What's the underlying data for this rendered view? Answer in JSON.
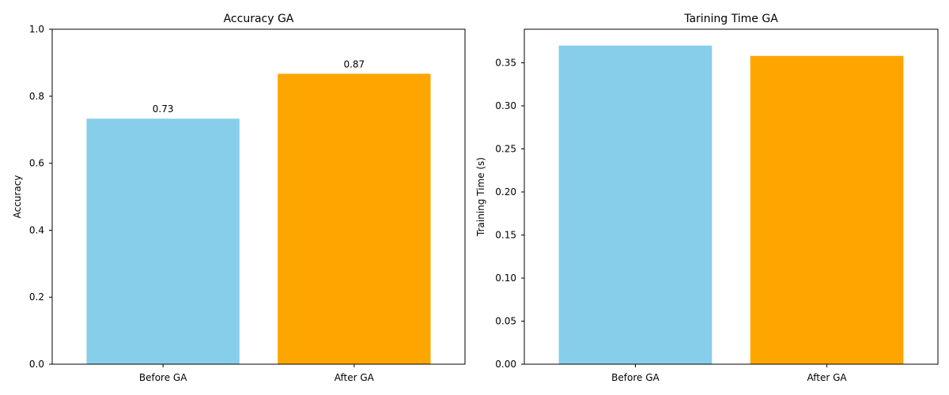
{
  "chart_data": [
    {
      "type": "bar",
      "title": "Accuracy GA",
      "xlabel": "",
      "ylabel": "Accuracy",
      "categories": [
        "Before GA",
        "After GA"
      ],
      "values": [
        0.733,
        0.867
      ],
      "bar_labels": [
        "0.73",
        "0.87"
      ],
      "colors": [
        "#87ceeb",
        "#ffa500"
      ],
      "ylim": [
        0,
        1.0
      ],
      "yticks": [
        0.0,
        0.2,
        0.4,
        0.6,
        0.8,
        1.0
      ],
      "ytick_labels": [
        "0.0",
        "0.2",
        "0.4",
        "0.6",
        "0.8",
        "1.0"
      ],
      "grid": false
    },
    {
      "type": "bar",
      "title": "Tarining Time GA",
      "xlabel": "",
      "ylabel": "Training Time (s)",
      "categories": [
        "Before GA",
        "After GA"
      ],
      "values": [
        0.37,
        0.358
      ],
      "bar_labels": [],
      "colors": [
        "#87ceeb",
        "#ffa500"
      ],
      "ylim": [
        0,
        0.389
      ],
      "yticks": [
        0.0,
        0.05,
        0.1,
        0.15,
        0.2,
        0.25,
        0.3,
        0.35
      ],
      "ytick_labels": [
        "0.00",
        "0.05",
        "0.10",
        "0.15",
        "0.20",
        "0.25",
        "0.30",
        "0.35"
      ],
      "grid": false
    }
  ]
}
